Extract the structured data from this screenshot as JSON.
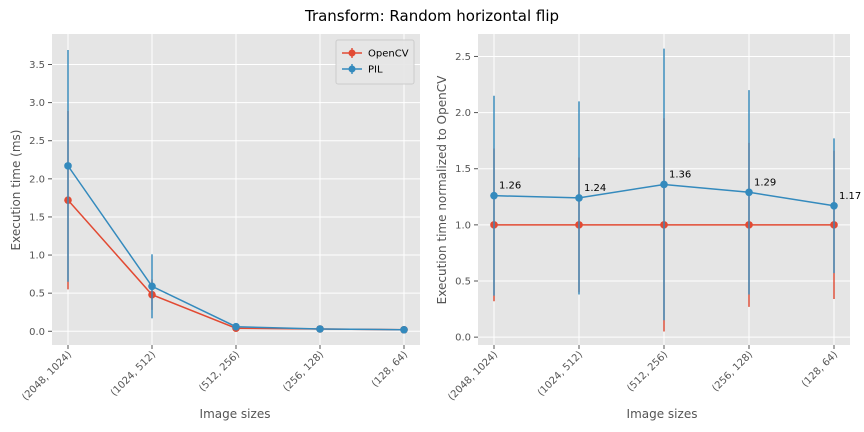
{
  "figure": {
    "title": "Transform: Random horizontal flip"
  },
  "colors": {
    "opencv": "#E24A33",
    "pil": "#348ABD",
    "panel_bg": "#E5E5E5",
    "grid": "#FFFFFF"
  },
  "chart_data": [
    {
      "type": "line",
      "categories": [
        "(2048, 1024)",
        "(1024, 512)",
        "(512, 256)",
        "(256, 128)",
        "(128, 64)"
      ],
      "xlabel": "Image sizes",
      "ylabel": "Execution time (ms)",
      "ylim": [
        -0.18,
        3.9
      ],
      "yticks": [
        0.0,
        0.5,
        1.0,
        1.5,
        2.0,
        2.5,
        3.0,
        3.5
      ],
      "ytick_labels": [
        "0.0",
        "0.5",
        "1.0",
        "1.5",
        "2.0",
        "2.5",
        "3.0",
        "3.5"
      ],
      "grid": true,
      "legend": "top-right",
      "series": [
        {
          "name": "OpenCV",
          "color": "#E24A33",
          "values": [
            1.72,
            0.48,
            0.04,
            0.03,
            0.02
          ],
          "err": [
            1.17,
            0.2,
            0.02,
            0.01,
            0.01
          ]
        },
        {
          "name": "PIL",
          "color": "#348ABD",
          "values": [
            2.17,
            0.59,
            0.06,
            0.03,
            0.02
          ],
          "err": [
            1.52,
            0.42,
            0.02,
            0.01,
            0.01
          ]
        }
      ]
    },
    {
      "type": "line",
      "categories": [
        "(2048, 1024)",
        "(1024, 512)",
        "(512, 256)",
        "(256, 128)",
        "(128, 64)"
      ],
      "xlabel": "Image sizes",
      "ylabel": "Execution time normalized to OpenCV",
      "ylim": [
        -0.07,
        2.7
      ],
      "yticks": [
        0.0,
        0.5,
        1.0,
        1.5,
        2.0,
        2.5
      ],
      "ytick_labels": [
        "0.0",
        "0.5",
        "1.0",
        "1.5",
        "2.0",
        "2.5"
      ],
      "grid": true,
      "annotations": [
        "1.26",
        "1.24",
        "1.36",
        "1.29",
        "1.17"
      ],
      "series": [
        {
          "color": "#E24A33",
          "values": [
            1.0,
            1.0,
            1.0,
            1.0,
            1.0
          ],
          "err": [
            0.68,
            0.6,
            0.95,
            0.73,
            0.66
          ]
        },
        {
          "color": "#348ABD",
          "values": [
            1.26,
            1.24,
            1.36,
            1.29,
            1.17
          ],
          "err": [
            0.89,
            0.86,
            1.21,
            0.91,
            0.6
          ]
        }
      ]
    }
  ]
}
